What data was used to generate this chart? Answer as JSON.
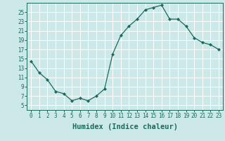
{
  "x": [
    0,
    1,
    2,
    3,
    4,
    5,
    6,
    7,
    8,
    9,
    10,
    11,
    12,
    13,
    14,
    15,
    16,
    17,
    18,
    19,
    20,
    21,
    22,
    23
  ],
  "y": [
    14.5,
    12.0,
    10.5,
    8.0,
    7.5,
    6.0,
    6.5,
    6.0,
    7.0,
    8.5,
    16.0,
    20.0,
    22.0,
    23.5,
    25.5,
    26.0,
    26.5,
    23.5,
    23.5,
    22.0,
    19.5,
    18.5,
    18.0,
    17.0
  ],
  "xlabel": "Humidex (Indice chaleur)",
  "ylabel": "",
  "line_color": "#1a6b5a",
  "marker_color": "#1a6b5a",
  "bg_color": "#cde8e8",
  "grid_color": "#ffffff",
  "xlim": [
    -0.5,
    23.5
  ],
  "ylim": [
    4,
    27
  ],
  "yticks": [
    5,
    7,
    9,
    11,
    13,
    15,
    17,
    19,
    21,
    23,
    25
  ],
  "xticks": [
    0,
    1,
    2,
    3,
    4,
    5,
    6,
    7,
    8,
    9,
    10,
    11,
    12,
    13,
    14,
    15,
    16,
    17,
    18,
    19,
    20,
    21,
    22,
    23
  ],
  "xtick_labels": [
    "0",
    "1",
    "2",
    "3",
    "4",
    "5",
    "6",
    "7",
    "8",
    "9",
    "10",
    "11",
    "12",
    "13",
    "14",
    "15",
    "16",
    "17",
    "18",
    "19",
    "20",
    "21",
    "22",
    "23"
  ],
  "axis_fontsize": 6.5,
  "tick_fontsize": 5.5,
  "xlabel_fontsize": 7.5
}
